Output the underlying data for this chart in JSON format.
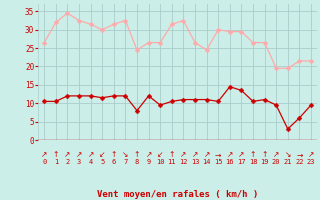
{
  "hours": [
    0,
    1,
    2,
    3,
    4,
    5,
    6,
    7,
    8,
    9,
    10,
    11,
    12,
    13,
    14,
    15,
    16,
    17,
    18,
    19,
    20,
    21,
    22,
    23
  ],
  "wind_avg": [
    10.5,
    10.5,
    12,
    12,
    12,
    11.5,
    12,
    12,
    8,
    12,
    9.5,
    10.5,
    11,
    11,
    11,
    10.5,
    14.5,
    13.5,
    10.5,
    11,
    9.5,
    3,
    6,
    9.5
  ],
  "wind_gust": [
    26.5,
    32,
    34.5,
    32.5,
    31.5,
    30,
    31.5,
    32.5,
    24.5,
    26.5,
    26.5,
    31.5,
    32.5,
    26.5,
    24.5,
    30,
    29.5,
    29.5,
    26.5,
    26.5,
    19.5,
    19.5,
    21.5,
    21.5
  ],
  "avg_color": "#cc0000",
  "gust_color": "#ffaaaa",
  "bg_color": "#cceee8",
  "grid_color": "#aacccc",
  "xlabel": "Vent moyen/en rafales ( km/h )",
  "xlabel_color": "#cc0000",
  "tick_color": "#cc0000",
  "ylim": [
    0,
    37
  ],
  "yticks": [
    0,
    5,
    10,
    15,
    20,
    25,
    30,
    35
  ],
  "arrow_symbols": [
    "↗",
    "↑",
    "↗",
    "↗",
    "↗",
    "↙",
    "↑",
    "↘",
    "↑",
    "↗",
    "↙",
    "↑",
    "↗",
    "↗",
    "↗",
    "→",
    "↗",
    "↗",
    "↑",
    "↑",
    "↗",
    "↘",
    "→",
    "↗"
  ],
  "markersize": 2.5,
  "linewidth": 0.9
}
